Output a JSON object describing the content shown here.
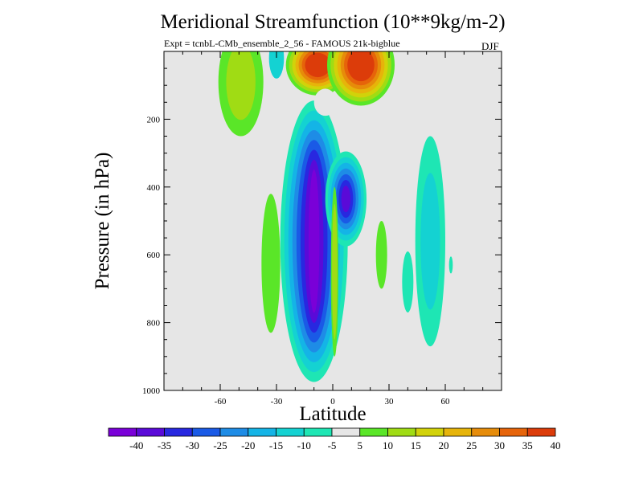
{
  "chart_data": {
    "type": "heatmap",
    "title": "Meridional Streamfunction (10**9kg/m-2)",
    "subtitle": "Expt = tcnbL-CMb_ensemble_2_56 - FAMOUS 21k-bigblue",
    "season": "DJF",
    "xlabel": "Latitude",
    "ylabel": "Pressure (in hPa)",
    "xlim": [
      -90,
      90
    ],
    "ylim": [
      1000,
      0
    ],
    "x_ticks": [
      -60,
      -30,
      0,
      30,
      60
    ],
    "x_tick_labels": [
      "-60",
      "-30",
      "0",
      "30",
      "60"
    ],
    "y_ticks": [
      200,
      400,
      600,
      800,
      1000
    ],
    "y_tick_labels": [
      "200",
      "400",
      "600",
      "800",
      "1000"
    ],
    "colorbar": {
      "levels": [
        "-40",
        "-35",
        "-30",
        "-25",
        "-20",
        "-15",
        "-10",
        "-5",
        "5",
        "10",
        "15",
        "20",
        "25",
        "30",
        "35",
        "40"
      ],
      "colors": [
        "#7a00d8",
        "#5a0ad8",
        "#2828e0",
        "#1a5ae6",
        "#1e8ce6",
        "#14b4e6",
        "#14d2d2",
        "#1ee6b4",
        "#e6e6e6",
        "#5ae628",
        "#a0dc14",
        "#d2d20a",
        "#e6b40a",
        "#e68c0a",
        "#e6640a",
        "#dc3c0a"
      ]
    },
    "features": [
      {
        "name": "negative cell (-40), centre near -10 lat, 200-950 hPa",
        "value": -40,
        "lat": -10,
        "p_top": 200,
        "p_bottom": 950
      },
      {
        "name": "negative cell (-35), near 7 lat, 320-560 hPa",
        "value": -35,
        "lat": 7,
        "p_top": 320,
        "p_bottom": 560
      },
      {
        "name": "positive cell (40), near -8 lat, upper levels",
        "value": 40,
        "lat": -8,
        "p_top": 0,
        "p_bottom": 100
      },
      {
        "name": "positive cell (40), near 15 lat, upper levels",
        "value": 40,
        "lat": 15,
        "p_top": 0,
        "p_bottom": 130
      },
      {
        "name": "positive cell (10), near -45 lat",
        "value": 10,
        "lat": -45,
        "p_top": 0,
        "p_bottom": 220
      },
      {
        "name": "positive cell (10), near -33 lat, lower troposphere",
        "value": 10,
        "lat": -33,
        "p_top": 400,
        "p_bottom": 800
      },
      {
        "name": "negative cell (-10), near 52 lat",
        "value": -10,
        "lat": 52,
        "p_top": 260,
        "p_bottom": 870
      }
    ]
  }
}
